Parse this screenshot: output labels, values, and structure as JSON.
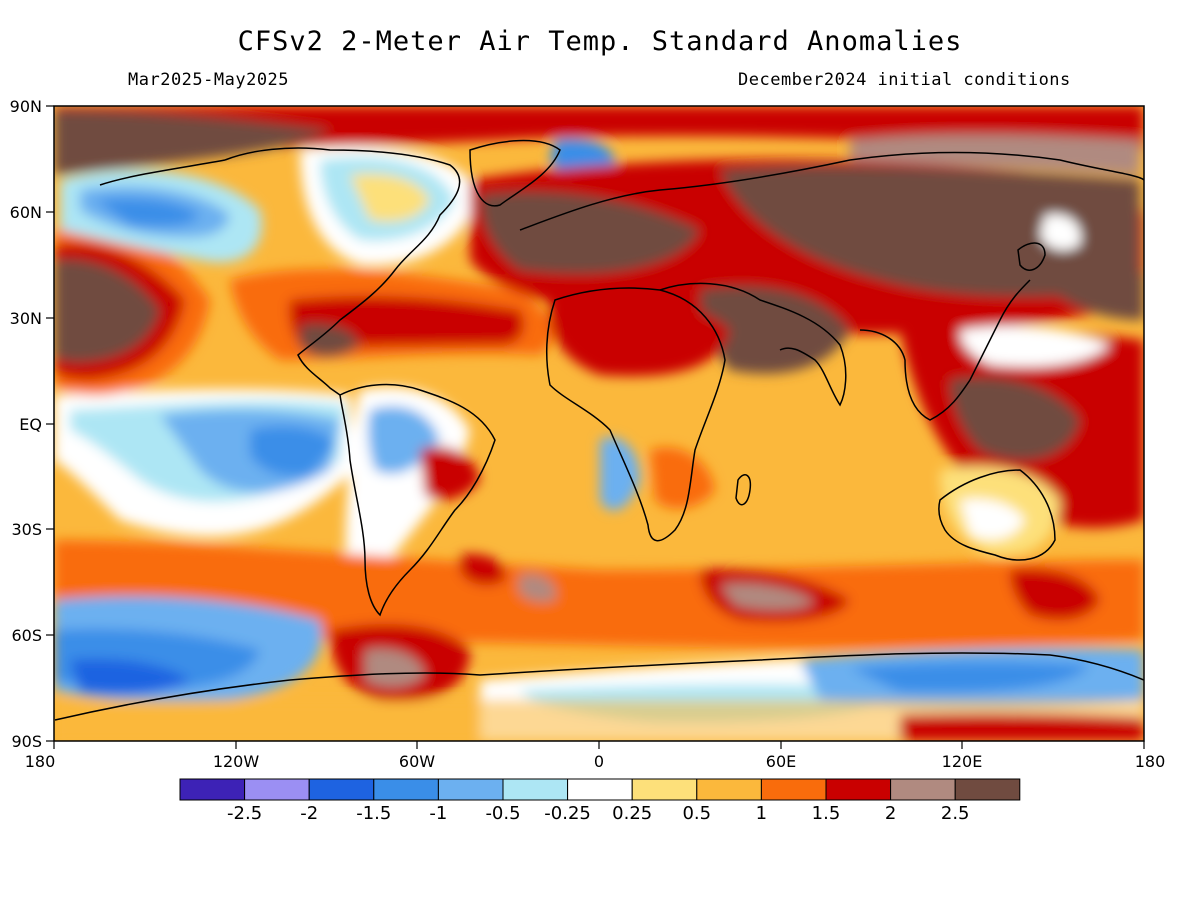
{
  "title": "CFSv2 2-Meter Air Temp. Standard Anomalies",
  "subtitle_left": "Mar2025-May2025",
  "subtitle_right": "December2024 initial conditions",
  "y_ticks": [
    "90N",
    "60N",
    "30N",
    "EQ",
    "30S",
    "60S",
    "90S"
  ],
  "x_ticks": [
    "180",
    "120W",
    "60W",
    "0",
    "60E",
    "120E",
    "180"
  ],
  "colorbar": {
    "colors": [
      "#3d22b6",
      "#9b8ff3",
      "#1e63e1",
      "#3a8ee8",
      "#6cb0f0",
      "#ade6f4",
      "#ffffff",
      "#fde07a",
      "#fbb83c",
      "#f96c0c",
      "#c90000",
      "#b08a80",
      "#704b40"
    ],
    "labels": [
      "-2.5",
      "-2",
      "-1.5",
      "-1",
      "-0.5",
      "-0.25",
      "0.25",
      "0.5",
      "1",
      "1.5",
      "2",
      "2.5"
    ]
  }
}
